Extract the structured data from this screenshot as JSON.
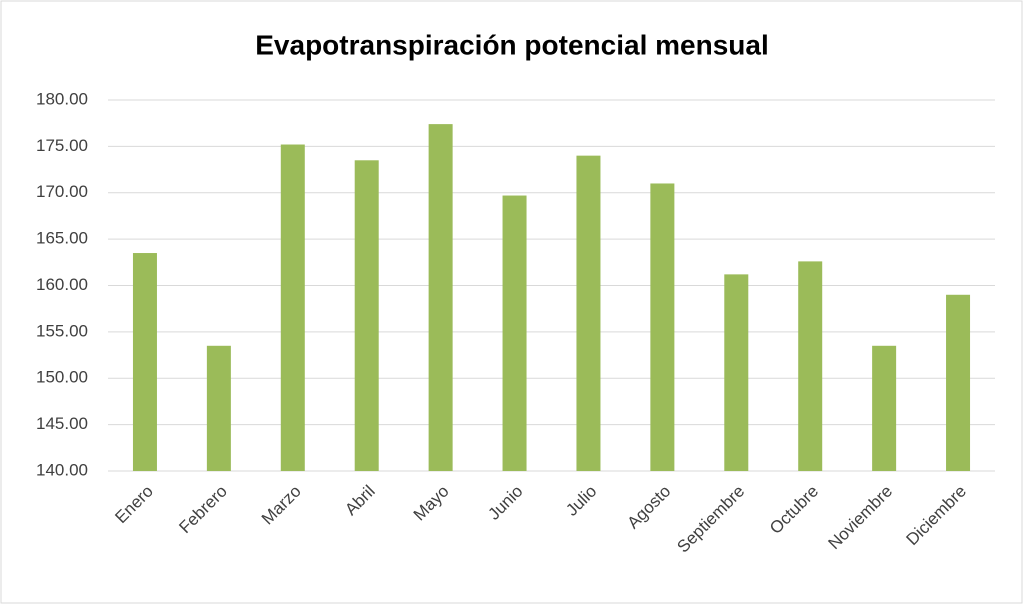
{
  "chart_data": {
    "type": "bar",
    "title": "Evapotranspiración potencial mensual",
    "categories": [
      "Enero",
      "Febrero",
      "Marzo",
      "Abril",
      "Mayo",
      "Junio",
      "Julio",
      "Agosto",
      "Septiembre",
      "Octubre",
      "Noviembre",
      "Diciembre"
    ],
    "values": [
      163.5,
      153.5,
      175.2,
      173.5,
      177.4,
      169.7,
      174.0,
      171.0,
      161.2,
      162.6,
      153.5,
      159.0
    ],
    "color": "#9bbb59",
    "ylim": [
      140,
      180
    ],
    "yticks": [
      {
        "value": 140,
        "label": "140.00"
      },
      {
        "value": 145,
        "label": "145.00"
      },
      {
        "value": 150,
        "label": "150.00"
      },
      {
        "value": 155,
        "label": "155.00"
      },
      {
        "value": 160,
        "label": "160.00"
      },
      {
        "value": 165,
        "label": "165.00"
      },
      {
        "value": 170,
        "label": "170.00"
      },
      {
        "value": 175,
        "label": "175.00"
      },
      {
        "value": 180,
        "label": "180.00"
      }
    ],
    "grid": true
  }
}
